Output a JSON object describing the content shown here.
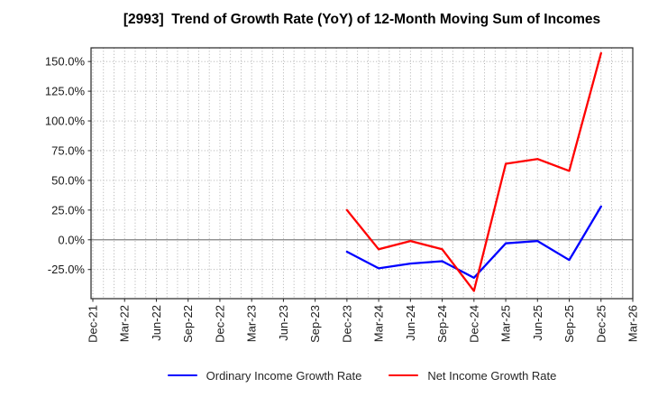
{
  "title": "[2993]  Trend of Growth Rate (YoY) of 12-Month Moving Sum of Incomes",
  "chart_data": {
    "type": "line",
    "title": "[2993]  Trend of Growth Rate (YoY) of 12-Month Moving Sum of Incomes",
    "categories": [
      "Dec-21",
      "Mar-22",
      "Jun-22",
      "Sep-22",
      "Dec-22",
      "Mar-23",
      "Jun-23",
      "Sep-23",
      "Dec-23",
      "Mar-24",
      "Jun-24",
      "Sep-24",
      "Dec-24",
      "Mar-25",
      "Jun-25",
      "Sep-25",
      "Dec-25",
      "Mar-26"
    ],
    "unit": "percent",
    "series": [
      {
        "name": "Ordinary Income Growth Rate",
        "color": "#0000ff",
        "start_category": "Dec-23",
        "values": [
          -10,
          -24,
          -20,
          -18,
          -32,
          -3,
          -1,
          -17,
          28
        ]
      },
      {
        "name": "Net Income Growth Rate",
        "color": "#ff0000",
        "start_category": "Dec-23",
        "values": [
          25,
          -8,
          -1,
          -8,
          -43,
          64,
          68,
          58,
          157
        ]
      }
    ],
    "y_ticks": [
      {
        "value": 150,
        "label": "150.0%"
      },
      {
        "value": 125,
        "label": "125.0%"
      },
      {
        "value": 100,
        "label": "100.0%"
      },
      {
        "value": 75,
        "label": "75.0%"
      },
      {
        "value": 50,
        "label": "50.0%"
      },
      {
        "value": 25,
        "label": "25.0%"
      },
      {
        "value": 0,
        "label": "0.0%"
      },
      {
        "value": -25,
        "label": "-25.0%"
      }
    ],
    "ylim": [
      -49.5,
      161.5
    ],
    "grid": true,
    "x_minor_divisions_per_interval": 3,
    "legend_position": "bottom-center"
  },
  "legend": {
    "items": [
      {
        "label": "Ordinary Income Growth Rate",
        "color": "#0000ff"
      },
      {
        "label": "Net Income Growth Rate",
        "color": "#ff0000"
      }
    ]
  },
  "colors": {
    "background": "#ffffff",
    "grid": "#a6a6a6",
    "zero_line": "#808080",
    "axis_border": "#262626",
    "tick_label": "#1a1a1a",
    "title": "#000000"
  }
}
